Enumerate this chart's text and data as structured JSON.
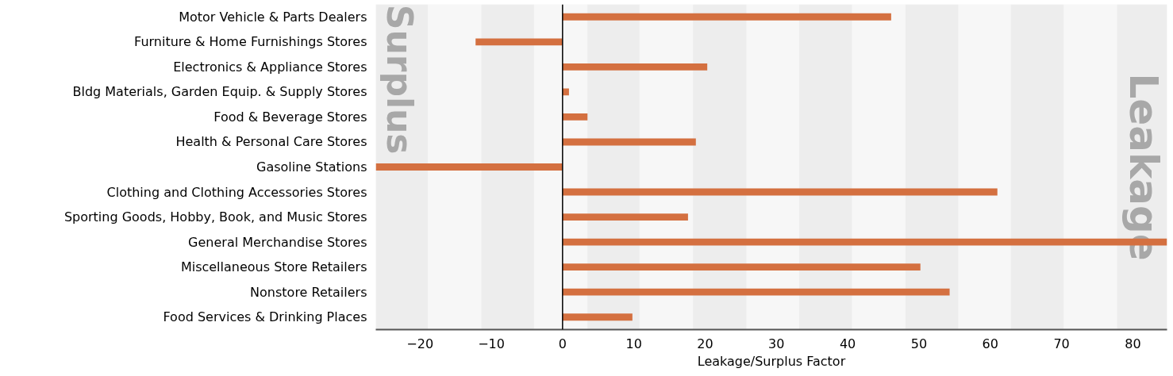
{
  "chart_data": {
    "type": "bar",
    "orientation": "horizontal",
    "xlabel": "Leakage/Surplus Factor",
    "categories": [
      "Motor Vehicle & Parts Dealers",
      "Furniture & Home Furnishings Stores",
      "Electronics & Appliance Stores",
      "Bldg Materials, Garden Equip. & Supply Stores",
      "Food & Beverage Stores",
      "Health & Personal Care Stores",
      "Gasoline Stations",
      "Clothing and Clothing Accessories Stores",
      "Sporting Goods, Hobby, Book, and Music Stores",
      "General Merchandise Stores",
      "Miscellaneous Store Retailers",
      "Nonstore Retailers",
      "Food Services & Drinking Places"
    ],
    "values": [
      46.1,
      -12.2,
      20.3,
      0.9,
      3.5,
      18.7,
      -26.2,
      61.0,
      17.6,
      84.8,
      50.2,
      54.3,
      9.8
    ],
    "color": "#d47040",
    "xlim": [
      -26.2,
      84.8
    ],
    "xticks": [
      -20,
      -10,
      0,
      10,
      20,
      30,
      40,
      50,
      60,
      70,
      80
    ],
    "grid": false,
    "ref_lines": [
      {
        "axis": "x",
        "value": 0,
        "color": "#000000"
      }
    ],
    "bands": [
      {
        "axis": "x",
        "from": -26.2,
        "to": -18.9,
        "color": "#ededed"
      },
      {
        "axis": "x",
        "from": -11.4,
        "to": -4.0,
        "color": "#ededed"
      },
      {
        "axis": "x",
        "from": 3.5,
        "to": 10.8,
        "color": "#ededed"
      },
      {
        "axis": "x",
        "from": 18.3,
        "to": 25.8,
        "color": "#ededed"
      },
      {
        "axis": "x",
        "from": 33.2,
        "to": 40.6,
        "color": "#ededed"
      },
      {
        "axis": "x",
        "from": 48.1,
        "to": 55.5,
        "color": "#ededed"
      },
      {
        "axis": "x",
        "from": 62.9,
        "to": 70.3,
        "color": "#ededed"
      },
      {
        "axis": "x",
        "from": 77.8,
        "to": 84.8,
        "color": "#ededed"
      }
    ],
    "annotations": [
      "Surplus",
      "Leakage"
    ]
  }
}
